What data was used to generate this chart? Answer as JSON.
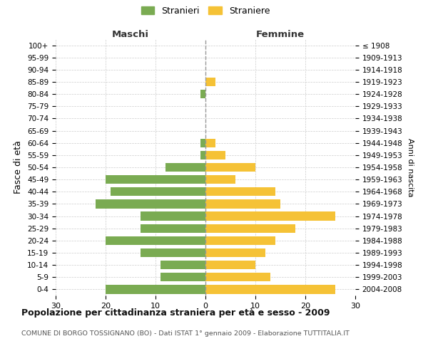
{
  "age_groups": [
    "100+",
    "95-99",
    "90-94",
    "85-89",
    "80-84",
    "75-79",
    "70-74",
    "65-69",
    "60-64",
    "55-59",
    "50-54",
    "45-49",
    "40-44",
    "35-39",
    "30-34",
    "25-29",
    "20-24",
    "15-19",
    "10-14",
    "5-9",
    "0-4"
  ],
  "birth_years": [
    "≤ 1908",
    "1909-1913",
    "1914-1918",
    "1919-1923",
    "1924-1928",
    "1929-1933",
    "1934-1938",
    "1939-1943",
    "1944-1948",
    "1949-1953",
    "1954-1958",
    "1959-1963",
    "1964-1968",
    "1969-1973",
    "1974-1978",
    "1979-1983",
    "1984-1988",
    "1989-1993",
    "1994-1998",
    "1999-2003",
    "2004-2008"
  ],
  "males": [
    0,
    0,
    0,
    0,
    1,
    0,
    0,
    0,
    1,
    1,
    8,
    20,
    19,
    22,
    13,
    13,
    20,
    13,
    9,
    9,
    20
  ],
  "females": [
    0,
    0,
    0,
    2,
    0,
    0,
    0,
    0,
    2,
    4,
    10,
    6,
    14,
    15,
    26,
    18,
    14,
    12,
    10,
    13,
    26
  ],
  "male_color": "#7aab52",
  "female_color": "#f5c236",
  "background_color": "#ffffff",
  "grid_color": "#cccccc",
  "title": "Popolazione per cittadinanza straniera per età e sesso - 2009",
  "subtitle": "COMUNE DI BORGO TOSSIGNANO (BO) - Dati ISTAT 1° gennaio 2009 - Elaborazione TUTTITALIA.IT",
  "ylabel_left": "Fasce di età",
  "ylabel_right": "Anni di nascita",
  "legend_male": "Stranieri",
  "legend_female": "Straniere",
  "header_left": "Maschi",
  "header_right": "Femmine",
  "xlim": 30
}
